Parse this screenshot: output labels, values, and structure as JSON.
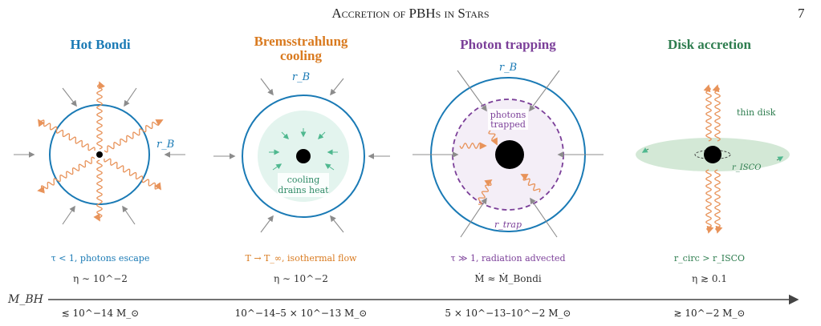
{
  "header": {
    "running_title": "Accretion of PBHs in Stars",
    "page_number": "7"
  },
  "panels": [
    {
      "title_lines": [
        "Hot Bondi"
      ],
      "color": "#1a7ab5",
      "labels": {
        "radius": "r_B"
      },
      "condition": "τ < 1, photons escape",
      "efficiency": "η ∼ 10^−2",
      "mass_range": "≲ 10^−14 M_⊙"
    },
    {
      "title_lines": [
        "Bremsstrahlung",
        "cooling"
      ],
      "color": "#d97a1f",
      "labels": {
        "radius": "r_B",
        "cooling_line1": "cooling",
        "cooling_line2": "drains heat"
      },
      "condition": "T → T_∞, isothermal flow",
      "efficiency": "η ∼ 10^−2",
      "mass_range": "10^−14–5 × 10^−13 M_⊙"
    },
    {
      "title_lines": [
        "Photon trapping"
      ],
      "color": "#7b3f99",
      "labels": {
        "radius": "r_B",
        "trap_line1": "photons",
        "trap_line2": "trapped",
        "trap_radius": "r_trap"
      },
      "condition": "τ ≫ 1, radiation advected",
      "efficiency": "Ṁ ≈ Ṁ_Bondi",
      "mass_range": "5 × 10^−13–10^−2 M_⊙"
    },
    {
      "title_lines": [
        "Disk accretion"
      ],
      "color": "#2e7d4f",
      "labels": {
        "thin_disk": "thin disk",
        "isco": "r_ISCO"
      },
      "condition": "r_circ > r_ISCO",
      "efficiency": "η ≳ 0.1",
      "mass_range": "≳ 10^−2 M_⊙"
    }
  ],
  "axis": {
    "label": "M_BH"
  },
  "colors": {
    "wave": "#e8935a",
    "inflow_arrow": "#8c8c8c",
    "cooling_fill": "#e3f4ee",
    "cooling_arrow": "#4fb88f",
    "trap_fill": "#f4eef7",
    "disk_fill": "#d3e8d6",
    "text_dark": "#333333"
  }
}
